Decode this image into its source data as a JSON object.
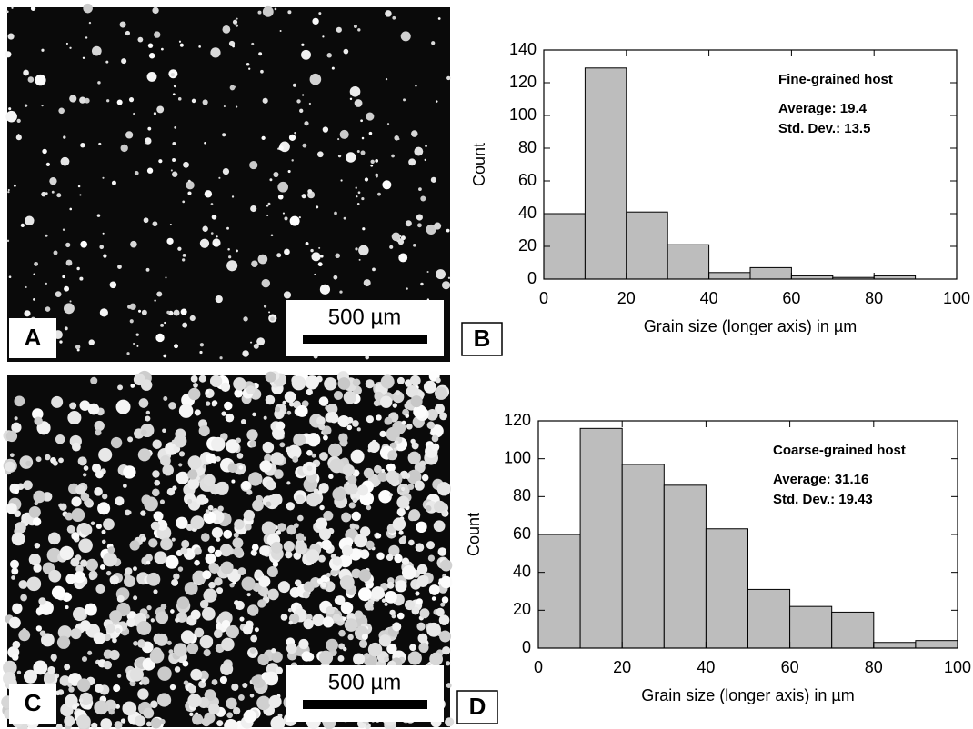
{
  "micrographs": [
    {
      "panel_label": "A",
      "scale_label": "500 µm"
    },
    {
      "panel_label": "C",
      "scale_label": "500 µm"
    }
  ],
  "chart_data": [
    {
      "type": "histogram",
      "panel_label": "B",
      "bins": [
        0,
        10,
        20,
        30,
        40,
        50,
        60,
        70,
        80,
        90
      ],
      "values": [
        40,
        129,
        41,
        21,
        4,
        7,
        2,
        1,
        2
      ],
      "color": "#bdbdbd",
      "xlim": [
        0,
        100
      ],
      "xticks": [
        0,
        20,
        40,
        60,
        80,
        100
      ],
      "ylim": [
        0,
        140
      ],
      "yticks": [
        0,
        20,
        40,
        60,
        80,
        100,
        120,
        140
      ],
      "xlabel": "Grain size (longer axis) in µm",
      "ylabel": "Count",
      "annotations": [
        "Fine-grained host",
        "Average: 19.4",
        "Std. Dev.: 13.5"
      ]
    },
    {
      "type": "histogram",
      "panel_label": "D",
      "bins": [
        0,
        10,
        20,
        30,
        40,
        50,
        60,
        70,
        80,
        90,
        100
      ],
      "values": [
        60,
        116,
        97,
        86,
        63,
        31,
        22,
        19,
        3,
        4
      ],
      "color": "#bdbdbd",
      "xlim": [
        0,
        100
      ],
      "xticks": [
        0,
        20,
        40,
        60,
        80,
        100
      ],
      "ylim": [
        0,
        120
      ],
      "yticks": [
        0,
        20,
        40,
        60,
        80,
        100,
        120
      ],
      "xlabel": "Grain size (longer axis) in µm",
      "ylabel": "Count",
      "annotations": [
        "Coarse-grained host",
        "Average:  31.16",
        "Std. Dev.:  19.43"
      ]
    }
  ]
}
